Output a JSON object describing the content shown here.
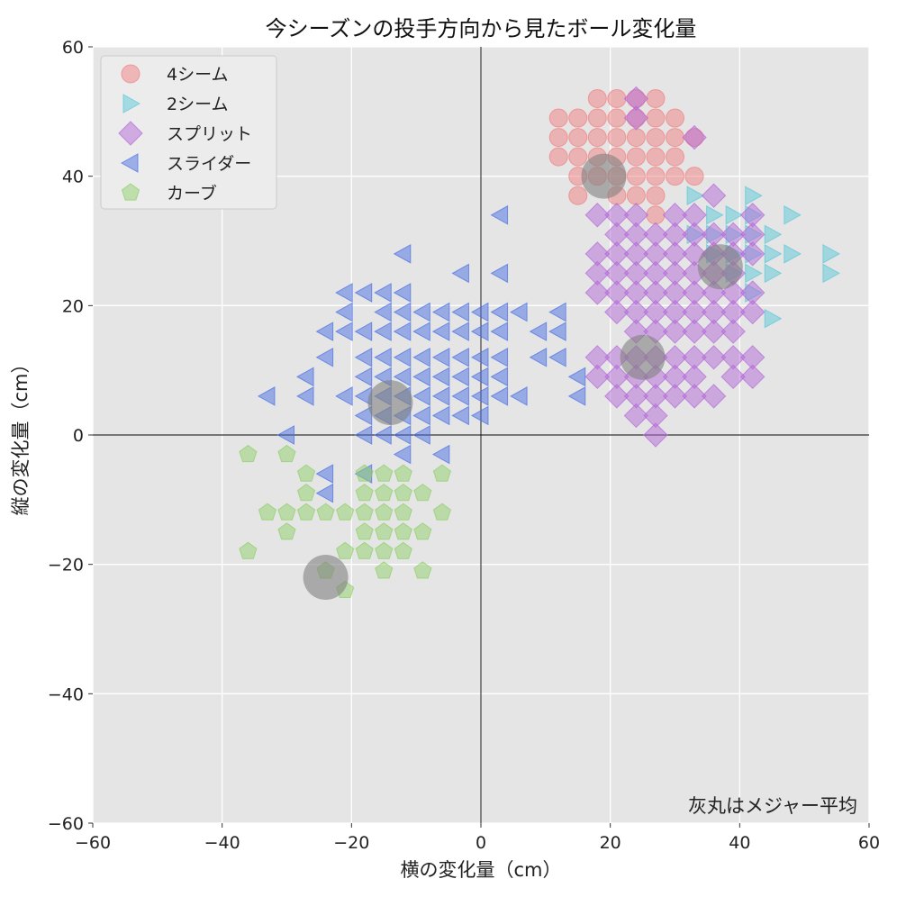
{
  "chart_data": {
    "type": "scatter",
    "title": "今シーズンの投手方向から見たボール変化量",
    "xlabel": "横の変化量（cm）",
    "ylabel": "縦の変化量（cm）",
    "xlim": [
      -60,
      60
    ],
    "ylim": [
      -60,
      60
    ],
    "xticks": [
      -60,
      -40,
      -20,
      0,
      20,
      40,
      60
    ],
    "yticks": [
      -60,
      -40,
      -20,
      0,
      20,
      40,
      60
    ],
    "xtick_labels": [
      "−60",
      "−40",
      "−20",
      "0",
      "20",
      "40",
      "60"
    ],
    "ytick_labels": [
      "−60",
      "−40",
      "−20",
      "0",
      "20",
      "40",
      "60"
    ],
    "grid": true,
    "legend_position": "top-left",
    "annotation": "灰丸はメジャー平均",
    "series": [
      {
        "name": "4シーム",
        "marker": "circle",
        "color": "#f08080",
        "points": [
          [
            18,
            52
          ],
          [
            21,
            52
          ],
          [
            24,
            52
          ],
          [
            27,
            52
          ],
          [
            12,
            49
          ],
          [
            15,
            49
          ],
          [
            18,
            49
          ],
          [
            21,
            49
          ],
          [
            24,
            49
          ],
          [
            27,
            49
          ],
          [
            30,
            49
          ],
          [
            12,
            46
          ],
          [
            15,
            46
          ],
          [
            18,
            46
          ],
          [
            21,
            46
          ],
          [
            24,
            46
          ],
          [
            27,
            46
          ],
          [
            30,
            46
          ],
          [
            33,
            46
          ],
          [
            12,
            43
          ],
          [
            15,
            43
          ],
          [
            18,
            43
          ],
          [
            21,
            43
          ],
          [
            24,
            43
          ],
          [
            27,
            43
          ],
          [
            30,
            43
          ],
          [
            15,
            40
          ],
          [
            18,
            40
          ],
          [
            21,
            40
          ],
          [
            24,
            40
          ],
          [
            27,
            40
          ],
          [
            30,
            40
          ],
          [
            33,
            40
          ],
          [
            15,
            37
          ],
          [
            21,
            37
          ],
          [
            24,
            37
          ],
          [
            27,
            37
          ],
          [
            27,
            34
          ]
        ]
      },
      {
        "name": "2シーム",
        "marker": "triangle-right",
        "color": "#5bc8d8",
        "points": [
          [
            33,
            37
          ],
          [
            36,
            34
          ],
          [
            39,
            34
          ],
          [
            42,
            37
          ],
          [
            42,
            34
          ],
          [
            48,
            34
          ],
          [
            33,
            31
          ],
          [
            36,
            31
          ],
          [
            39,
            31
          ],
          [
            42,
            31
          ],
          [
            45,
            31
          ],
          [
            36,
            28
          ],
          [
            39,
            28
          ],
          [
            42,
            28
          ],
          [
            45,
            28
          ],
          [
            48,
            28
          ],
          [
            54,
            28
          ],
          [
            39,
            25
          ],
          [
            42,
            25
          ],
          [
            45,
            25
          ],
          [
            54,
            25
          ],
          [
            42,
            22
          ],
          [
            45,
            18
          ]
        ]
      },
      {
        "name": "スプリット",
        "marker": "diamond",
        "color": "#b36ad8",
        "points": [
          [
            24,
            52
          ],
          [
            24,
            49
          ],
          [
            33,
            46
          ],
          [
            18,
            34
          ],
          [
            21,
            34
          ],
          [
            24,
            34
          ],
          [
            30,
            34
          ],
          [
            33,
            34
          ],
          [
            36,
            37
          ],
          [
            42,
            34
          ],
          [
            21,
            31
          ],
          [
            24,
            31
          ],
          [
            27,
            31
          ],
          [
            30,
            31
          ],
          [
            33,
            31
          ],
          [
            36,
            31
          ],
          [
            39,
            31
          ],
          [
            42,
            31
          ],
          [
            18,
            28
          ],
          [
            21,
            28
          ],
          [
            24,
            28
          ],
          [
            27,
            28
          ],
          [
            30,
            28
          ],
          [
            33,
            28
          ],
          [
            36,
            28
          ],
          [
            39,
            28
          ],
          [
            42,
            28
          ],
          [
            18,
            25
          ],
          [
            21,
            25
          ],
          [
            24,
            25
          ],
          [
            27,
            25
          ],
          [
            30,
            25
          ],
          [
            33,
            25
          ],
          [
            36,
            25
          ],
          [
            39,
            25
          ],
          [
            18,
            22
          ],
          [
            21,
            22
          ],
          [
            24,
            22
          ],
          [
            27,
            22
          ],
          [
            30,
            22
          ],
          [
            33,
            22
          ],
          [
            36,
            22
          ],
          [
            39,
            22
          ],
          [
            42,
            22
          ],
          [
            21,
            19
          ],
          [
            24,
            19
          ],
          [
            27,
            19
          ],
          [
            30,
            19
          ],
          [
            33,
            19
          ],
          [
            36,
            19
          ],
          [
            39,
            19
          ],
          [
            42,
            19
          ],
          [
            24,
            16
          ],
          [
            27,
            16
          ],
          [
            30,
            16
          ],
          [
            33,
            16
          ],
          [
            36,
            16
          ],
          [
            39,
            16
          ],
          [
            18,
            12
          ],
          [
            21,
            12
          ],
          [
            24,
            12
          ],
          [
            27,
            12
          ],
          [
            30,
            12
          ],
          [
            33,
            12
          ],
          [
            36,
            12
          ],
          [
            39,
            12
          ],
          [
            42,
            12
          ],
          [
            18,
            9
          ],
          [
            21,
            9
          ],
          [
            24,
            9
          ],
          [
            27,
            9
          ],
          [
            30,
            9
          ],
          [
            33,
            9
          ],
          [
            39,
            9
          ],
          [
            42,
            9
          ],
          [
            21,
            6
          ],
          [
            24,
            6
          ],
          [
            27,
            6
          ],
          [
            30,
            6
          ],
          [
            33,
            6
          ],
          [
            36,
            6
          ],
          [
            24,
            3
          ],
          [
            27,
            3
          ],
          [
            27,
            0
          ]
        ]
      },
      {
        "name": "スライダー",
        "marker": "triangle-left",
        "color": "#4a6fe3",
        "points": [
          [
            3,
            34
          ],
          [
            -12,
            28
          ],
          [
            -3,
            25
          ],
          [
            3,
            25
          ],
          [
            -21,
            22
          ],
          [
            -18,
            22
          ],
          [
            -15,
            22
          ],
          [
            -12,
            22
          ],
          [
            -21,
            19
          ],
          [
            -15,
            19
          ],
          [
            -12,
            19
          ],
          [
            -9,
            19
          ],
          [
            -6,
            19
          ],
          [
            -3,
            19
          ],
          [
            0,
            19
          ],
          [
            3,
            19
          ],
          [
            6,
            19
          ],
          [
            12,
            19
          ],
          [
            -24,
            16
          ],
          [
            -21,
            16
          ],
          [
            -18,
            16
          ],
          [
            -15,
            16
          ],
          [
            -12,
            16
          ],
          [
            -9,
            16
          ],
          [
            -6,
            16
          ],
          [
            -3,
            16
          ],
          [
            0,
            16
          ],
          [
            3,
            16
          ],
          [
            9,
            16
          ],
          [
            12,
            16
          ],
          [
            -24,
            12
          ],
          [
            -18,
            12
          ],
          [
            -15,
            12
          ],
          [
            -12,
            12
          ],
          [
            -9,
            12
          ],
          [
            -6,
            12
          ],
          [
            -3,
            12
          ],
          [
            0,
            12
          ],
          [
            3,
            12
          ],
          [
            9,
            12
          ],
          [
            12,
            12
          ],
          [
            -27,
            9
          ],
          [
            -18,
            9
          ],
          [
            -15,
            9
          ],
          [
            -12,
            9
          ],
          [
            -9,
            9
          ],
          [
            -6,
            9
          ],
          [
            -3,
            9
          ],
          [
            0,
            9
          ],
          [
            3,
            9
          ],
          [
            15,
            9
          ],
          [
            -33,
            6
          ],
          [
            -27,
            6
          ],
          [
            -21,
            6
          ],
          [
            -18,
            6
          ],
          [
            -15,
            6
          ],
          [
            -12,
            6
          ],
          [
            -9,
            6
          ],
          [
            -6,
            6
          ],
          [
            -3,
            6
          ],
          [
            0,
            6
          ],
          [
            3,
            6
          ],
          [
            6,
            6
          ],
          [
            15,
            6
          ],
          [
            -18,
            3
          ],
          [
            -15,
            3
          ],
          [
            -12,
            3
          ],
          [
            -9,
            3
          ],
          [
            -6,
            3
          ],
          [
            -3,
            3
          ],
          [
            0,
            3
          ],
          [
            -30,
            0
          ],
          [
            -18,
            0
          ],
          [
            -15,
            0
          ],
          [
            -12,
            0
          ],
          [
            -9,
            0
          ],
          [
            -12,
            -3
          ],
          [
            -6,
            -3
          ],
          [
            -24,
            -6
          ],
          [
            -18,
            -6
          ],
          [
            -24,
            -9
          ]
        ]
      },
      {
        "name": "カーブ",
        "marker": "pentagon",
        "color": "#8fcf6a",
        "points": [
          [
            -36,
            -3
          ],
          [
            -30,
            -3
          ],
          [
            -27,
            -6
          ],
          [
            -18,
            -6
          ],
          [
            -15,
            -6
          ],
          [
            -12,
            -6
          ],
          [
            -6,
            -6
          ],
          [
            -27,
            -9
          ],
          [
            -18,
            -9
          ],
          [
            -15,
            -9
          ],
          [
            -12,
            -9
          ],
          [
            -9,
            -9
          ],
          [
            -33,
            -12
          ],
          [
            -30,
            -12
          ],
          [
            -27,
            -12
          ],
          [
            -24,
            -12
          ],
          [
            -21,
            -12
          ],
          [
            -18,
            -12
          ],
          [
            -15,
            -12
          ],
          [
            -12,
            -12
          ],
          [
            -6,
            -12
          ],
          [
            -30,
            -15
          ],
          [
            -18,
            -15
          ],
          [
            -15,
            -15
          ],
          [
            -12,
            -15
          ],
          [
            -9,
            -15
          ],
          [
            -21,
            -18
          ],
          [
            -18,
            -18
          ],
          [
            -15,
            -18
          ],
          [
            -12,
            -18
          ],
          [
            -36,
            -18
          ],
          [
            -15,
            -21
          ],
          [
            -9,
            -21
          ],
          [
            -24,
            -21
          ],
          [
            -21,
            -24
          ]
        ]
      }
    ],
    "mlb_average": {
      "color": "#808080",
      "points": [
        [
          19,
          40
        ],
        [
          37,
          26
        ],
        [
          25,
          12
        ],
        [
          -14,
          5
        ],
        [
          -24,
          -22
        ]
      ]
    }
  }
}
